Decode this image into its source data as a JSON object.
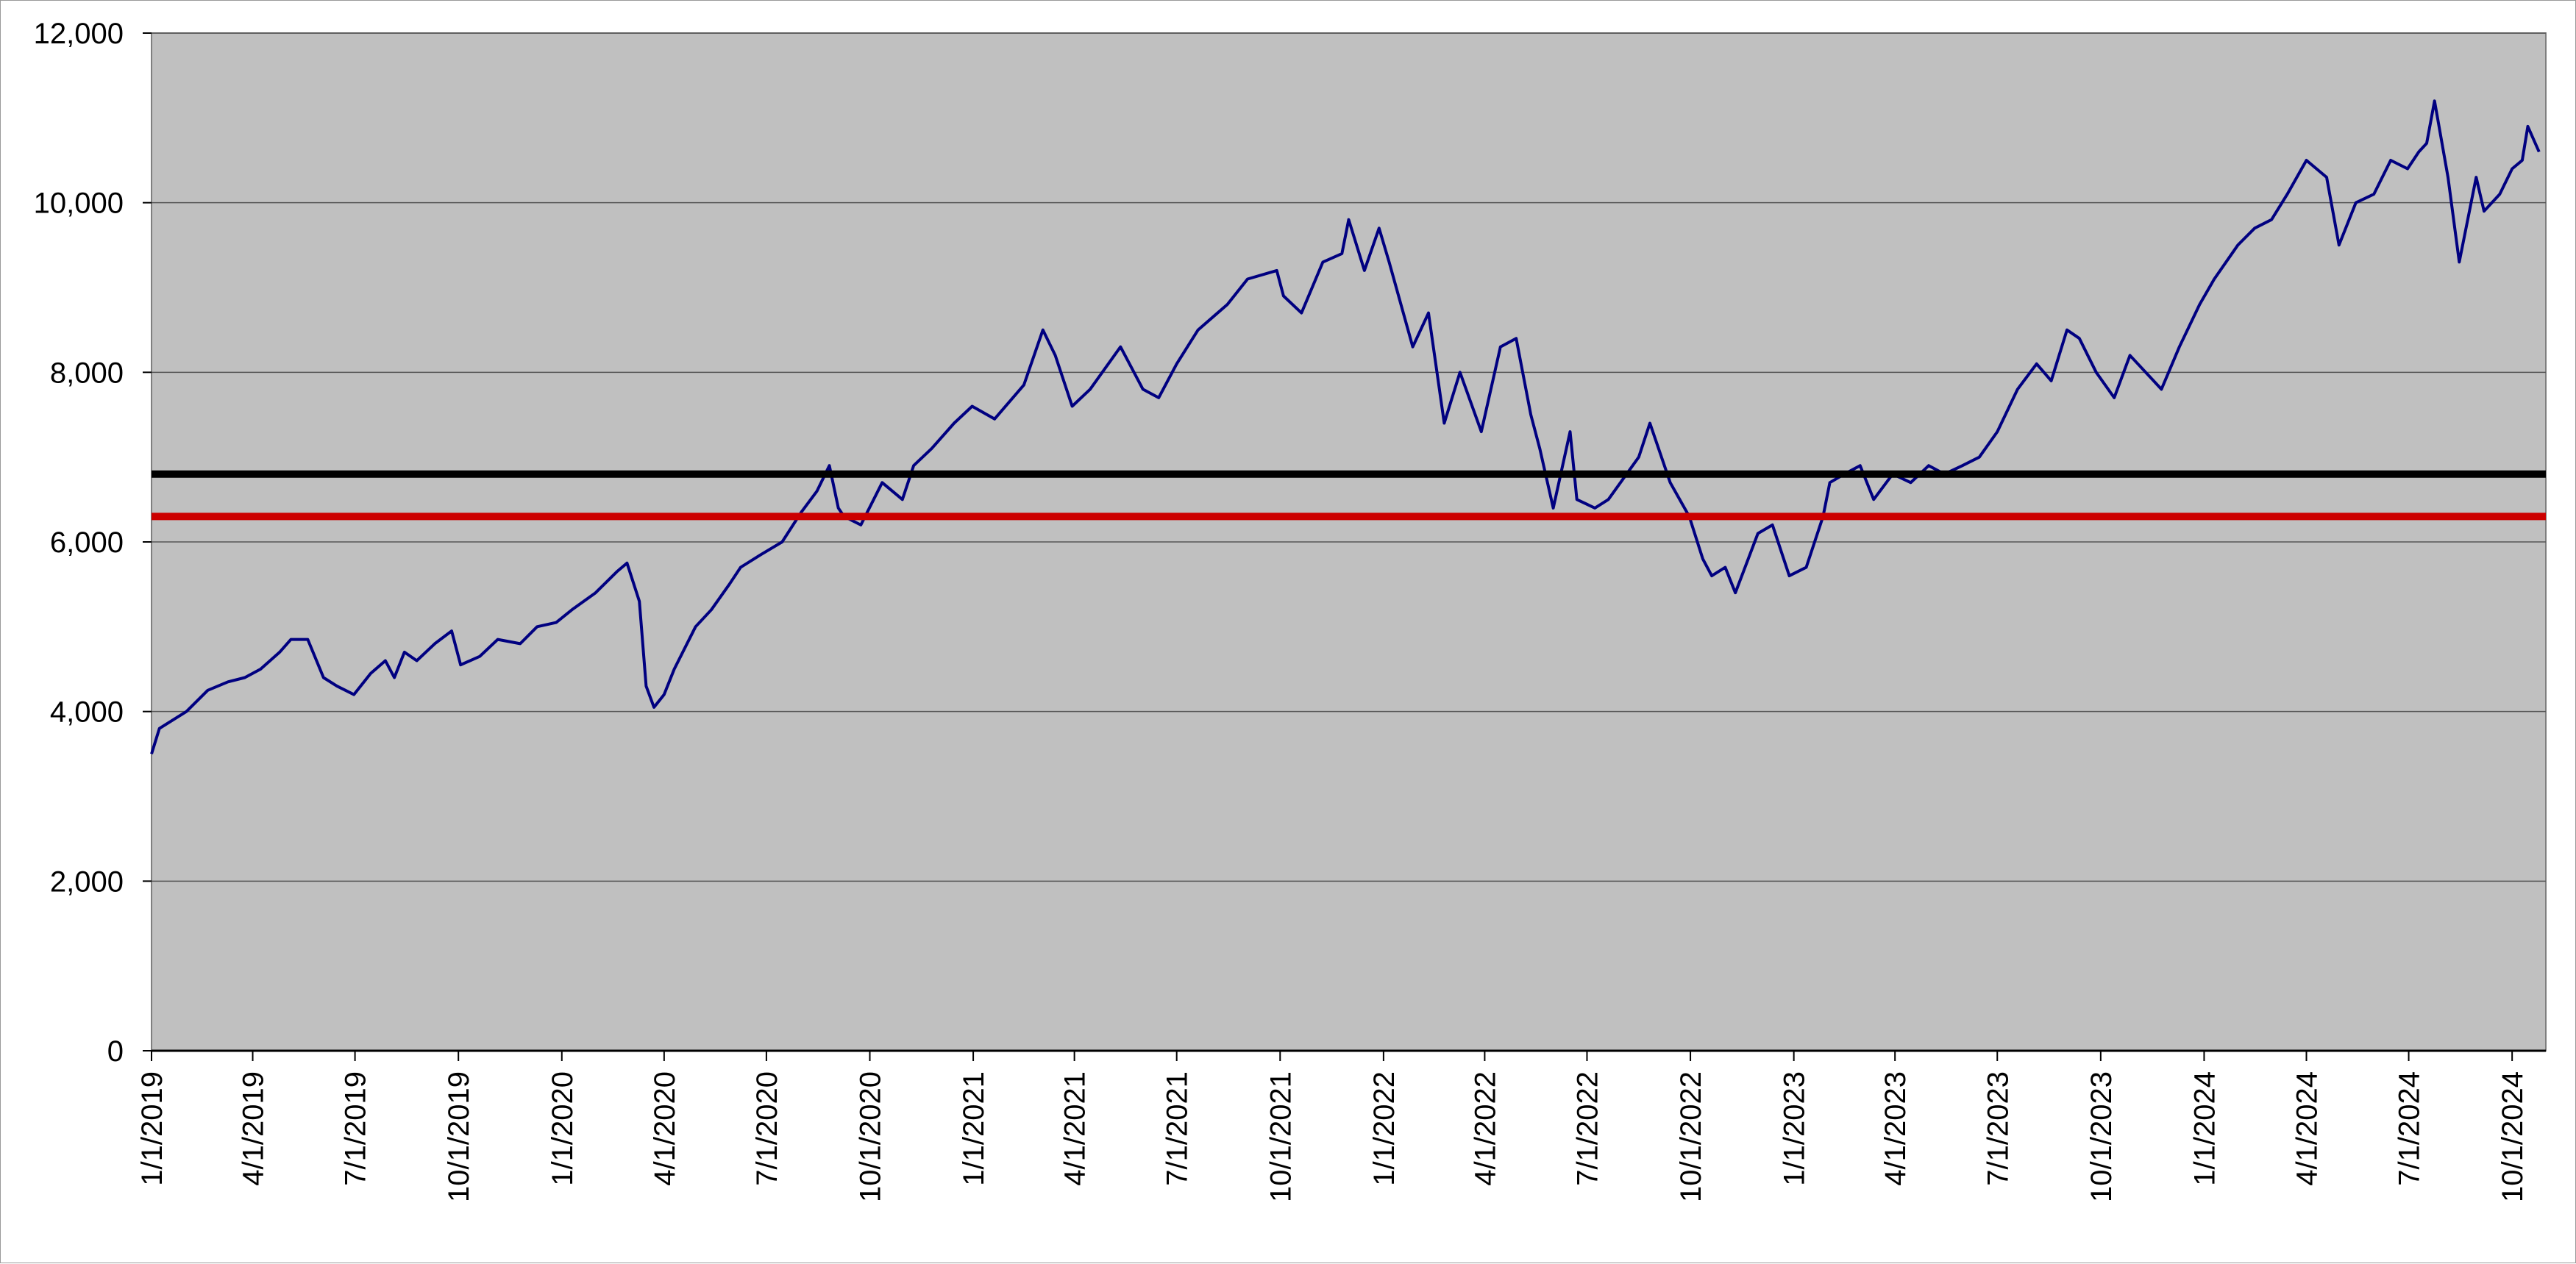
{
  "chart_data": {
    "type": "line",
    "title": "",
    "xlabel": "",
    "ylabel": "",
    "ylim": [
      0,
      12000
    ],
    "y_ticks": [
      0,
      2000,
      4000,
      6000,
      8000,
      10000,
      12000
    ],
    "y_tick_labels": [
      "0",
      "2,000",
      "4,000",
      "6,000",
      "8,000",
      "10,000",
      "12,000"
    ],
    "xlim": [
      "2019-01-01",
      "2024-10-31"
    ],
    "x_ticks": [
      "2019-01-01",
      "2019-04-01",
      "2019-07-01",
      "2019-10-01",
      "2020-01-01",
      "2020-04-01",
      "2020-07-01",
      "2020-10-01",
      "2021-01-01",
      "2021-04-01",
      "2021-07-01",
      "2021-10-01",
      "2022-01-01",
      "2022-04-01",
      "2022-07-01",
      "2022-10-01",
      "2023-01-01",
      "2023-04-01",
      "2023-07-01",
      "2023-10-01",
      "2024-01-01",
      "2024-04-01",
      "2024-07-01",
      "2024-10-01"
    ],
    "x_tick_labels": [
      "1/1/2019",
      "4/1/2019",
      "7/1/2019",
      "10/1/2019",
      "1/1/2020",
      "4/1/2020",
      "7/1/2020",
      "10/1/2020",
      "1/1/2021",
      "4/1/2021",
      "7/1/2021",
      "10/1/2021",
      "1/1/2022",
      "4/1/2022",
      "7/1/2022",
      "10/1/2022",
      "1/1/2023",
      "4/1/2023",
      "7/1/2023",
      "10/1/2023",
      "1/1/2024",
      "4/1/2024",
      "7/1/2024",
      "10/1/2024"
    ],
    "grid": "horizontal",
    "plot_background": "#c0c0c0",
    "series": [
      {
        "color": "#000080",
        "x": [
          "2019-01-01",
          "2019-01-08",
          "2019-01-20",
          "2019-02-01",
          "2019-02-20",
          "2019-03-10",
          "2019-03-25",
          "2019-04-08",
          "2019-04-25",
          "2019-05-05",
          "2019-05-20",
          "2019-06-03",
          "2019-06-15",
          "2019-06-30",
          "2019-07-15",
          "2019-07-28",
          "2019-08-05",
          "2019-08-14",
          "2019-08-25",
          "2019-09-10",
          "2019-09-25",
          "2019-10-03",
          "2019-10-20",
          "2019-11-05",
          "2019-11-25",
          "2019-12-10",
          "2019-12-27",
          "2020-01-10",
          "2020-01-31",
          "2020-02-19",
          "2020-02-28",
          "2020-03-10",
          "2020-03-16",
          "2020-03-23",
          "2020-04-01",
          "2020-04-10",
          "2020-04-29",
          "2020-05-13",
          "2020-05-29",
          "2020-06-08",
          "2020-06-26",
          "2020-07-15",
          "2020-08-01",
          "2020-08-15",
          "2020-08-26",
          "2020-09-03",
          "2020-09-08",
          "2020-09-23",
          "2020-10-12",
          "2020-10-30",
          "2020-11-09",
          "2020-11-25",
          "2020-12-15",
          "2020-12-31",
          "2021-01-20",
          "2021-02-15",
          "2021-03-04",
          "2021-03-15",
          "2021-03-30",
          "2021-04-15",
          "2021-05-12",
          "2021-06-01",
          "2021-06-15",
          "2021-07-01",
          "2021-07-20",
          "2021-08-15",
          "2021-09-02",
          "2021-09-28",
          "2021-10-04",
          "2021-10-20",
          "2021-11-08",
          "2021-11-25",
          "2021-12-01",
          "2021-12-15",
          "2021-12-28",
          "2022-01-06",
          "2022-01-27",
          "2022-02-10",
          "2022-02-24",
          "2022-03-10",
          "2022-03-29",
          "2022-04-15",
          "2022-04-29",
          "2022-05-12",
          "2022-05-20",
          "2022-06-01",
          "2022-06-16",
          "2022-06-22",
          "2022-07-08",
          "2022-07-20",
          "2022-08-16",
          "2022-08-26",
          "2022-09-13",
          "2022-09-30",
          "2022-10-12",
          "2022-10-20",
          "2022-11-01",
          "2022-11-10",
          "2022-11-30",
          "2022-12-13",
          "2022-12-28",
          "2023-01-12",
          "2023-01-27",
          "2023-02-02",
          "2023-02-15",
          "2023-03-01",
          "2023-03-13",
          "2023-03-30",
          "2023-04-15",
          "2023-05-01",
          "2023-05-15",
          "2023-05-31",
          "2023-06-15",
          "2023-07-01",
          "2023-07-19",
          "2023-08-05",
          "2023-08-18",
          "2023-09-01",
          "2023-09-12",
          "2023-09-27",
          "2023-10-13",
          "2023-10-27",
          "2023-11-10",
          "2023-11-24",
          "2023-12-10",
          "2023-12-28",
          "2024-01-10",
          "2024-01-31",
          "2024-02-15",
          "2024-03-01",
          "2024-03-15",
          "2024-04-01",
          "2024-04-19",
          "2024-04-30",
          "2024-05-15",
          "2024-05-31",
          "2024-06-15",
          "2024-06-30",
          "2024-07-10",
          "2024-07-17",
          "2024-07-24",
          "2024-08-05",
          "2024-08-15",
          "2024-08-30",
          "2024-09-06",
          "2024-09-20",
          "2024-10-01",
          "2024-10-10",
          "2024-10-15",
          "2024-10-25"
        ],
        "y": [
          3500,
          3800,
          3900,
          4000,
          4250,
          4350,
          4400,
          4500,
          4700,
          4850,
          4850,
          4400,
          4300,
          4200,
          4450,
          4600,
          4400,
          4700,
          4600,
          4800,
          4950,
          4550,
          4650,
          4850,
          4800,
          5000,
          5050,
          5200,
          5400,
          5650,
          5750,
          5300,
          4300,
          4050,
          4200,
          4500,
          5000,
          5200,
          5500,
          5700,
          5850,
          6000,
          6350,
          6600,
          6900,
          6400,
          6300,
          6200,
          6700,
          6500,
          6900,
          7100,
          7400,
          7600,
          7450,
          7850,
          8500,
          8200,
          7600,
          7800,
          8300,
          7800,
          7700,
          8100,
          8500,
          8800,
          9100,
          9200,
          8900,
          8700,
          9300,
          9400,
          9800,
          9200,
          9700,
          9300,
          8300,
          8700,
          7400,
          8000,
          7300,
          8300,
          8400,
          7500,
          7100,
          6400,
          7300,
          6500,
          6400,
          6500,
          7000,
          7400,
          6700,
          6300,
          5800,
          5600,
          5700,
          5400,
          6100,
          6200,
          5600,
          5700,
          6300,
          6700,
          6800,
          6900,
          6500,
          6800,
          6700,
          6900,
          6800,
          6900,
          7000,
          7300,
          7800,
          8100,
          7900,
          8500,
          8400,
          8000,
          7700,
          8200,
          8000,
          7800,
          8300,
          8800,
          9100,
          9500,
          9700,
          9800,
          10100,
          10500,
          10300,
          9500,
          10000,
          10100,
          10500,
          10400,
          10600,
          10700,
          11200,
          10300,
          9300,
          10300,
          9900,
          10100,
          10400,
          10500,
          10900,
          10600
        ]
      }
    ],
    "reference_lines": [
      {
        "y": 6800,
        "color": "#000000"
      },
      {
        "y": 6300,
        "color": "#cc0000"
      }
    ]
  }
}
